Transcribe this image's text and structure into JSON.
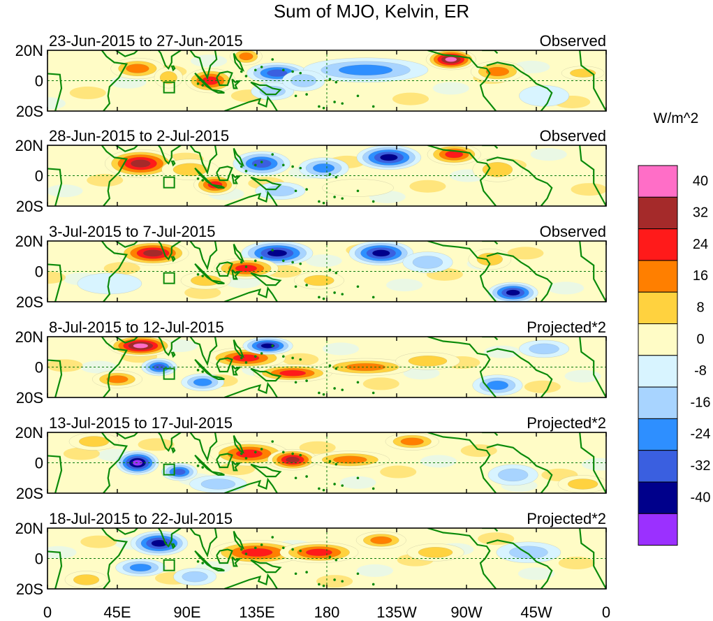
{
  "title": "Sum of MJO, Kelvin, ER",
  "colorbar": {
    "unit": "W/m^2",
    "colors": [
      "#ff6ec7",
      "#a52a2a",
      "#ff1a1a",
      "#ff7f00",
      "#ffd23f",
      "#fffcc6",
      "#d8f4ff",
      "#a8d4ff",
      "#2e8fff",
      "#3a5fe0",
      "#00008b",
      "#9b30ff"
    ],
    "labels": [
      "40",
      "32",
      "24",
      "16",
      "8",
      "0",
      "-8",
      "-16",
      "-24",
      "-32",
      "-40"
    ]
  },
  "lat_ticks": [
    "20N",
    "0",
    "20S"
  ],
  "lon_ticks": [
    "0",
    "45E",
    "90E",
    "135E",
    "180",
    "135W",
    "90W",
    "45W",
    "0"
  ],
  "panels": [
    {
      "date_range": "23-Jun-2015 to 27-Jun-2015",
      "kind": "Observed",
      "anomalies": [
        {
          "lon": 58,
          "lat": 8,
          "rlon": 15,
          "rlat": 6,
          "v": 18
        },
        {
          "lon": 78,
          "lat": 2,
          "rlon": 8,
          "rlat": 6,
          "v": 12
        },
        {
          "lon": 105,
          "lat": 0,
          "rlon": 14,
          "rlat": 7,
          "v": 30
        },
        {
          "lon": 128,
          "lat": 16,
          "rlon": 9,
          "rlat": 5,
          "v": 22
        },
        {
          "lon": 148,
          "lat": 5,
          "rlon": 17,
          "rlat": 6,
          "v": -28
        },
        {
          "lon": 145,
          "lat": -7,
          "rlon": 12,
          "rlat": 5,
          "v": -16
        },
        {
          "lon": 205,
          "lat": 7,
          "rlon": 35,
          "rlat": 7,
          "v": -18
        },
        {
          "lon": 165,
          "lat": 0,
          "rlon": 12,
          "rlat": 6,
          "v": -14
        },
        {
          "lon": 260,
          "lat": 14,
          "rlon": 14,
          "rlat": 6,
          "v": 42
        },
        {
          "lon": 290,
          "lat": 6,
          "rlon": 15,
          "rlat": 6,
          "v": 24
        },
        {
          "lon": 345,
          "lat": 5,
          "rlon": 12,
          "rlat": 4,
          "v": 10
        },
        {
          "lon": 320,
          "lat": -10,
          "rlon": 14,
          "rlat": 6,
          "v": -6
        }
      ]
    },
    {
      "date_range": "28-Jun-2015 to 2-Jul-2015",
      "kind": "Observed",
      "anomalies": [
        {
          "lon": 60,
          "lat": 8,
          "rlon": 20,
          "rlat": 8,
          "v": 36
        },
        {
          "lon": 92,
          "lat": 4,
          "rlon": 16,
          "rlat": 6,
          "v": 16
        },
        {
          "lon": 108,
          "lat": -6,
          "rlon": 12,
          "rlat": 6,
          "v": 30
        },
        {
          "lon": 138,
          "lat": 8,
          "rlon": 16,
          "rlat": 7,
          "v": -26
        },
        {
          "lon": 178,
          "lat": 5,
          "rlon": 14,
          "rlat": 6,
          "v": -22
        },
        {
          "lon": 220,
          "lat": 12,
          "rlon": 18,
          "rlat": 7,
          "v": -36
        },
        {
          "lon": 262,
          "lat": 14,
          "rlon": 15,
          "rlat": 6,
          "v": 26
        },
        {
          "lon": 290,
          "lat": 4,
          "rlon": 14,
          "rlat": 7,
          "v": 12
        },
        {
          "lon": 150,
          "lat": -10,
          "rlon": 14,
          "rlat": 5,
          "v": -14
        },
        {
          "lon": 200,
          "lat": -8,
          "rlon": 20,
          "rlat": 5,
          "v": 8
        }
      ]
    },
    {
      "date_range": "3-Jul-2015 to 7-Jul-2015",
      "kind": "Observed",
      "anomalies": [
        {
          "lon": 68,
          "lat": 12,
          "rlon": 20,
          "rlat": 7,
          "v": 34
        },
        {
          "lon": 148,
          "lat": 12,
          "rlon": 20,
          "rlat": 7,
          "v": -38
        },
        {
          "lon": 128,
          "lat": 2,
          "rlon": 18,
          "rlat": 6,
          "v": 26
        },
        {
          "lon": 102,
          "lat": -6,
          "rlon": 14,
          "rlat": 5,
          "v": 16
        },
        {
          "lon": 215,
          "lat": 12,
          "rlon": 18,
          "rlat": 7,
          "v": -34
        },
        {
          "lon": 245,
          "lat": 6,
          "rlon": 14,
          "rlat": 6,
          "v": -16
        },
        {
          "lon": 300,
          "lat": -14,
          "rlon": 14,
          "rlat": 6,
          "v": -34
        },
        {
          "lon": 285,
          "lat": 8,
          "rlon": 12,
          "rlat": 6,
          "v": 12
        },
        {
          "lon": 40,
          "lat": -8,
          "rlon": 18,
          "rlat": 6,
          "v": -8
        },
        {
          "lon": 175,
          "lat": -6,
          "rlon": 14,
          "rlat": 5,
          "v": 10
        }
      ]
    },
    {
      "date_range": "8-Jul-2015 to 12-Jul-2015",
      "kind": "Projected*2",
      "anomalies": [
        {
          "lon": 60,
          "lat": 14,
          "rlon": 18,
          "rlat": 6,
          "v": 42
        },
        {
          "lon": 72,
          "lat": 0,
          "rlon": 10,
          "rlat": 5,
          "v": -28
        },
        {
          "lon": 45,
          "lat": -8,
          "rlon": 14,
          "rlat": 5,
          "v": 22
        },
        {
          "lon": 128,
          "lat": 6,
          "rlon": 22,
          "rlat": 6,
          "v": 26
        },
        {
          "lon": 158,
          "lat": -4,
          "rlon": 22,
          "rlat": 5,
          "v": 30
        },
        {
          "lon": 142,
          "lat": 14,
          "rlon": 14,
          "rlat": 5,
          "v": -34
        },
        {
          "lon": 205,
          "lat": 0,
          "rlon": 26,
          "rlat": 5,
          "v": 22
        },
        {
          "lon": 245,
          "lat": 4,
          "rlon": 18,
          "rlat": 5,
          "v": 12
        },
        {
          "lon": 100,
          "lat": -10,
          "rlon": 12,
          "rlat": 5,
          "v": -18
        },
        {
          "lon": 290,
          "lat": -12,
          "rlon": 14,
          "rlat": 6,
          "v": -24
        },
        {
          "lon": 320,
          "lat": 12,
          "rlon": 14,
          "rlat": 5,
          "v": -10
        }
      ]
    },
    {
      "date_range": "13-Jul-2015 to 17-Jul-2015",
      "kind": "Projected*2",
      "anomalies": [
        {
          "lon": 58,
          "lat": 0,
          "rlon": 12,
          "rlat": 7,
          "v": -44
        },
        {
          "lon": 85,
          "lat": -6,
          "rlon": 10,
          "rlat": 5,
          "v": -28
        },
        {
          "lon": 130,
          "lat": 6,
          "rlon": 22,
          "rlat": 7,
          "v": 30
        },
        {
          "lon": 158,
          "lat": 2,
          "rlon": 14,
          "rlat": 6,
          "v": 40
        },
        {
          "lon": 195,
          "lat": 2,
          "rlon": 22,
          "rlat": 5,
          "v": 22
        },
        {
          "lon": 235,
          "lat": 14,
          "rlon": 15,
          "rlat": 5,
          "v": 18
        },
        {
          "lon": 30,
          "lat": 14,
          "rlon": 14,
          "rlat": 5,
          "v": 10
        },
        {
          "lon": 300,
          "lat": -8,
          "rlon": 14,
          "rlat": 6,
          "v": -10
        },
        {
          "lon": 345,
          "lat": -14,
          "rlon": 14,
          "rlat": 5,
          "v": 12
        },
        {
          "lon": 110,
          "lat": -14,
          "rlon": 16,
          "rlat": 5,
          "v": -10
        }
      ]
    },
    {
      "date_range": "18-Jul-2015 to 22-Jul-2015",
      "kind": "Projected*2",
      "anomalies": [
        {
          "lon": 72,
          "lat": 10,
          "rlon": 16,
          "rlat": 7,
          "v": -36
        },
        {
          "lon": 60,
          "lat": -6,
          "rlon": 14,
          "rlat": 5,
          "v": -18
        },
        {
          "lon": 135,
          "lat": 4,
          "rlon": 26,
          "rlat": 7,
          "v": 28
        },
        {
          "lon": 175,
          "lat": 4,
          "rlon": 22,
          "rlat": 6,
          "v": 26
        },
        {
          "lon": 215,
          "lat": 12,
          "rlon": 14,
          "rlat": 5,
          "v": 22
        },
        {
          "lon": 250,
          "lat": 4,
          "rlon": 16,
          "rlat": 5,
          "v": 10
        },
        {
          "lon": 25,
          "lat": -14,
          "rlon": 12,
          "rlat": 5,
          "v": 16
        },
        {
          "lon": 310,
          "lat": 4,
          "rlon": 18,
          "rlat": 6,
          "v": -12
        },
        {
          "lon": 95,
          "lat": -12,
          "rlon": 12,
          "rlat": 5,
          "v": -14
        }
      ]
    }
  ]
}
